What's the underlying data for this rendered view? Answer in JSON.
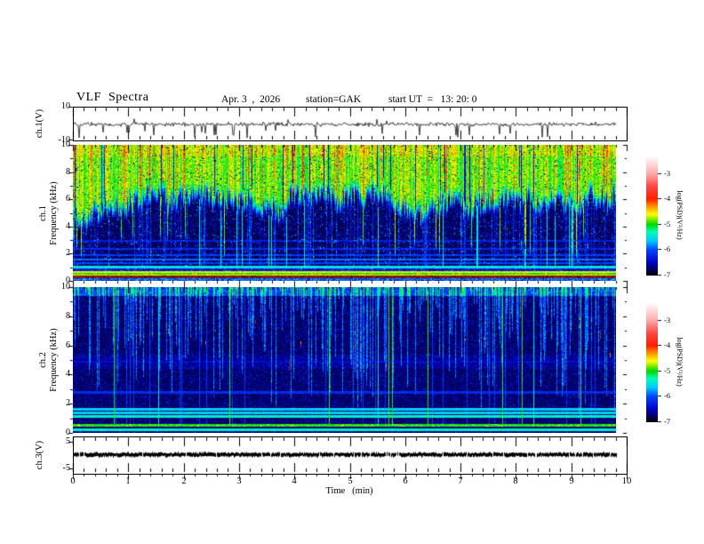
{
  "header": {
    "title": "VLF  Spectra",
    "date": "Apr. 3  ,  2026",
    "station": "station=GAK",
    "start_ut": "start UT  =   13: 20: 0"
  },
  "xaxis": {
    "label": "Time   (min)",
    "ticks": [
      0,
      1,
      2,
      3,
      4,
      5,
      6,
      7,
      8,
      9,
      10
    ],
    "minor_step": 0.2,
    "range_min": [
      0,
      10
    ],
    "data_end_min": 9.8
  },
  "colorbar": {
    "label": "log(PSD)(V²/Hz)",
    "ticks": [
      -3,
      -4,
      -5,
      -6,
      -7
    ],
    "range": [
      -7,
      -3
    ],
    "colormap_stops": [
      [
        -7,
        "#000000"
      ],
      [
        -6.8,
        "#00005a"
      ],
      [
        -6.5,
        "#0000c8"
      ],
      [
        -6,
        "#0046ff"
      ],
      [
        -5.65,
        "#00c8ff"
      ],
      [
        -5.3,
        "#00ffb4"
      ],
      [
        -5,
        "#00d700"
      ],
      [
        -4.6,
        "#ffff00"
      ],
      [
        -4.3,
        "#ff9600"
      ],
      [
        -4,
        "#ff1e00"
      ],
      [
        -3.5,
        "#ff4646"
      ],
      [
        -3,
        "#ffaaaa"
      ],
      [
        -2.3,
        "#ffffff"
      ]
    ]
  },
  "chart_data": [
    {
      "id": "ch1_waveform",
      "type": "line",
      "panel_label": "ch.1(V)",
      "ylim": [
        -10,
        10
      ],
      "yticks": [
        10,
        -10
      ],
      "line_color": "#000000",
      "signal": {
        "baseline_v": -0.5,
        "noise_v": 1.2,
        "neg_spike_prob": 0.03,
        "neg_spike_range": [
          -3.5,
          -9.5
        ],
        "pos_spike_prob": 0.01,
        "pos_spike_range": [
          1.5,
          3.5
        ]
      },
      "summary": "Broadband noisy voltage trace near 0 V with many short negative spikes toward -10 V, spanning 0 to ~9.8 min"
    },
    {
      "id": "ch1_spectrogram",
      "type": "heatmap",
      "panel_label": [
        "ch.1",
        "Frequency (kHz)"
      ],
      "ylim": [
        0,
        10
      ],
      "yticks": [
        0,
        2,
        4,
        6,
        8,
        10
      ],
      "zlim": [
        -7,
        -3
      ],
      "model": {
        "strong_zone_psd": -4.85,
        "strong_zone_lower_edge_khz": [
          4.3,
          7.0
        ],
        "deep_streak_prob": 0.04,
        "yellow_col_prob": 0.13,
        "red_streak_prob": 0.05,
        "dark_col_prob": 0.05,
        "weak_zone_psd": -6.6,
        "speckle_prob": 0.1,
        "low_streak_prob": 0.16,
        "full_line_prob": 0.025,
        "narrowband_lines_khz": [
          [
            1.05,
            -5.5
          ],
          [
            1.35,
            -6.05
          ],
          [
            1.6,
            -5.9
          ],
          [
            1.95,
            -6.1
          ],
          [
            2.4,
            -6.2
          ],
          [
            3.0,
            -6.3
          ]
        ],
        "bottom_bands": [
          [
            0.78,
            0.95,
            "blue_speckle"
          ],
          [
            0.59,
            0.78,
            "yellow"
          ],
          [
            0.52,
            0.59,
            "green"
          ],
          [
            0.42,
            0.52,
            "yellow"
          ],
          [
            0.2,
            0.42,
            "maroon"
          ],
          [
            0.05,
            0.2,
            "cyan_speckle"
          ],
          [
            0,
            0.05,
            "dark"
          ]
        ]
      },
      "summary": "Strong broadband power (PSD ~ -4.5 to -5, green/yellow with red impulses) above ~5-7 kHz; weak (< -6.5, dark blue/black) below with blue speckle, vertical impulsive streaks, narrowband lines near 1-3 kHz and an intense yellow/maroon band below 1 kHz"
    },
    {
      "id": "ch2_spectrogram",
      "type": "heatmap",
      "panel_label": [
        "ch.2",
        "Frequency (kHz)"
      ],
      "ylim": [
        0,
        10
      ],
      "yticks": [
        0,
        2,
        4,
        6,
        8,
        10
      ],
      "zlim": [
        -7,
        -3
      ],
      "model": {
        "base_psd": -6.78,
        "streak_prob": 0.5,
        "strong_streak_prob": 0.05,
        "cyan_line_prob": 0.018,
        "green_line_prob": 0.012,
        "red_dot_prob": 0.02,
        "narrowband_lines_khz": [
          [
            1.15,
            -5.4
          ],
          [
            1.4,
            -5.6
          ],
          [
            1.65,
            -5.6
          ],
          [
            2.8,
            -6.2
          ],
          [
            4.9,
            -6.45
          ]
        ],
        "bottom_bands": [
          [
            0.44,
            0.62,
            "green"
          ],
          [
            0.32,
            0.44,
            "dark"
          ],
          [
            0.18,
            0.32,
            "cyan"
          ],
          [
            0,
            0.18,
            "dark_speckle"
          ]
        ]
      },
      "summary": "Mostly weak background (~ -6.8, dark blue/black) with dense blue vertical impulsive streaks from the top, sparse green/cyan full-height lines, rare red dots, cyan narrowband lines near 1-2 kHz and bright green lines below 0.6 kHz"
    },
    {
      "id": "ch3_waveform",
      "type": "line",
      "panel_label": "ch.3(V)",
      "ylim": [
        -7,
        7
      ],
      "yticks": [
        5,
        -5
      ],
      "line_color": "#000000",
      "signal": {
        "level_v": 0,
        "thickness_v": 1.5
      },
      "summary": "Flat thick dark trace at ~0 V for the whole record"
    }
  ]
}
